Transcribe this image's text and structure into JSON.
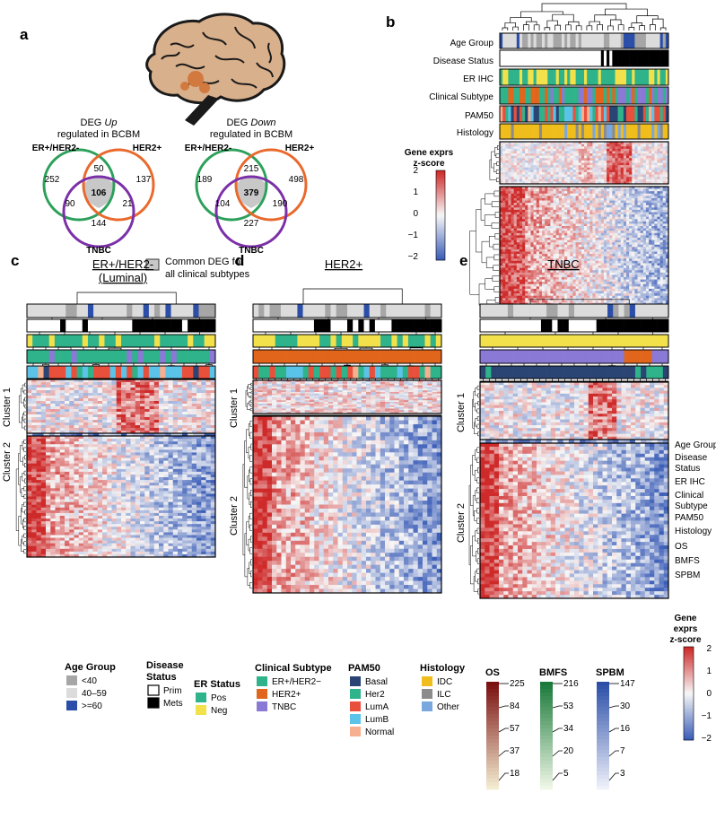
{
  "panels": {
    "a": "a",
    "b": "b",
    "c": "c",
    "d": "d",
    "e": "e"
  },
  "venn": [
    {
      "title_lines": [
        "DEG Up",
        "regulated in BCBM"
      ],
      "italic_word": "Up",
      "sets": [
        "ER+/HER2-",
        "HER2+",
        "TNBC"
      ],
      "counts": {
        "er_only": "252",
        "her2_only": "137",
        "tnbc_only": "144",
        "er_her2": "50",
        "er_tnbc": "90",
        "her2_tnbc": "21",
        "all": "106"
      }
    },
    {
      "title_lines": [
        "DEG Down",
        "regulated in BCBM"
      ],
      "italic_word": "Down",
      "sets": [
        "ER+/HER2-",
        "HER2+",
        "TNBC"
      ],
      "counts": {
        "er_only": "189",
        "her2_only": "498",
        "tnbc_only": "227",
        "er_her2": "215",
        "er_tnbc": "104",
        "her2_tnbc": "190",
        "all": "379"
      }
    }
  ],
  "venn_legend": [
    "Common DEG for",
    "all clinical subtypes"
  ],
  "panel_b": {
    "track_labels": [
      "Age Group",
      "Disease Status",
      "ER IHC",
      "Clinical Subtype",
      "PAM50",
      "Histology"
    ],
    "colorbar_title": [
      "Gene exprs",
      "z-score"
    ],
    "colorbar_ticks": [
      "2",
      "1",
      "0",
      "−1",
      "−2"
    ]
  },
  "panel_titles": {
    "c_line1": "ER+/HER2-",
    "c_line2": "(Luminal)",
    "d": "HER2+",
    "e": "TNBC"
  },
  "side_tracks": [
    "Age Group",
    "Disease",
    "Status",
    "ER IHC",
    "Clinical",
    "Subtype",
    "PAM50",
    "Histology",
    "OS",
    "BMFS",
    "SPBM"
  ],
  "cluster_labels": [
    "Cluster 1",
    "Cluster 2"
  ],
  "colorbar_e": {
    "title": [
      "Gene",
      "exprs",
      "z-score"
    ],
    "ticks": [
      "2",
      "1",
      "0",
      "−1",
      "−2"
    ]
  },
  "legend": {
    "age": {
      "title": "Age Group",
      "items": [
        "<40",
        "40–59",
        ">=60"
      ]
    },
    "disease": {
      "title": [
        "Disease",
        "Status"
      ],
      "items": [
        "Prim",
        "Mets"
      ]
    },
    "er": {
      "title": "ER Status",
      "items": [
        "Pos",
        "Neg"
      ]
    },
    "subtype": {
      "title": "Clinical Subtype",
      "items": [
        "ER+/HER2−",
        "HER2+",
        "TNBC"
      ]
    },
    "pam50": {
      "title": "PAM50",
      "items": [
        "Basal",
        "Her2",
        "LumA",
        "LumB",
        "Normal"
      ]
    },
    "histology": {
      "title": "Histology",
      "items": [
        "IDC",
        "ILC",
        "Other"
      ]
    },
    "os": {
      "title": "OS",
      "ticks": [
        "225",
        "84",
        "57",
        "37",
        "18"
      ]
    },
    "bmfs": {
      "title": "BMFS",
      "ticks": [
        "216",
        "53",
        "34",
        "20",
        "5"
      ]
    },
    "spbm": {
      "title": "SPBM",
      "ticks": [
        "147",
        "30",
        "16",
        "7",
        "3"
      ]
    }
  },
  "colors": {
    "er_circle": "#2ca05a",
    "her2_circle": "#e9692c",
    "tnbc_circle": "#7b2fa8",
    "common_fill": "#c8c8c8",
    "age": [
      "#a6a6a6",
      "#dcdcdc",
      "#2b4fa8"
    ],
    "disease": [
      "#ffffff",
      "#000000"
    ],
    "er": [
      "#2fb38a",
      "#f2e14b"
    ],
    "subtype": [
      "#2fb38a",
      "#e1661b",
      "#8b79d6"
    ],
    "pam50": [
      "#2a4474",
      "#2fb38a",
      "#e9503c",
      "#5bc3e8",
      "#f7b08f"
    ],
    "histology": [
      "#f0be1c",
      "#8c8c8c",
      "#7ba7df"
    ],
    "heat_high": "#cf2a2a",
    "heat_mid": "#f7f7f7",
    "heat_low": "#3d5fb8",
    "os": [
      "#7a1010",
      "#f3ecd0"
    ],
    "bmfs": [
      "#1b7a3a",
      "#eef6e6"
    ],
    "spbm": [
      "#2b4fa8",
      "#eef0fa"
    ]
  }
}
